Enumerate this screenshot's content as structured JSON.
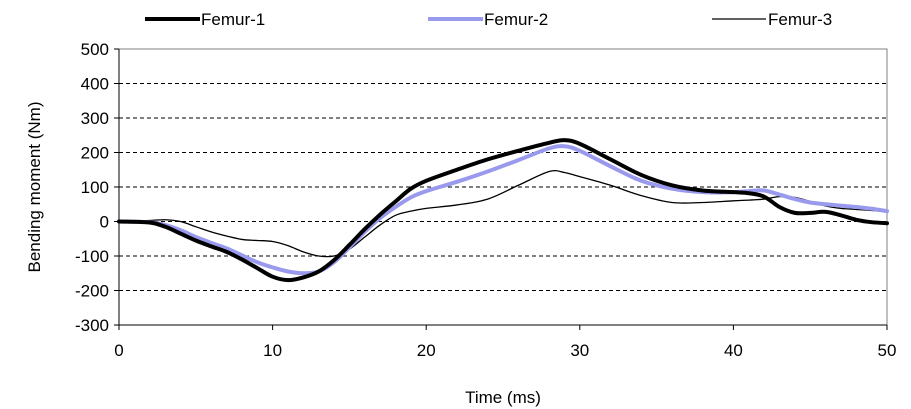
{
  "chart_data": {
    "type": "line",
    "xlabel": "Time (ms)",
    "ylabel": "Bending moment (Nm)",
    "xlim": [
      0,
      50
    ],
    "ylim": [
      -300,
      500
    ],
    "x_ticks": [
      0,
      10,
      20,
      30,
      40,
      50
    ],
    "y_ticks": [
      -300,
      -200,
      -100,
      0,
      100,
      200,
      300,
      400,
      500
    ],
    "grid": "horizontal dashed",
    "legend_position": "top",
    "series": [
      {
        "name": "Femur-1",
        "color": "#000000",
        "line_width": "thick",
        "x": [
          0,
          2,
          3,
          4,
          5,
          6,
          7,
          8,
          9,
          10,
          11,
          12,
          13,
          14,
          15,
          16,
          17,
          18,
          19,
          20,
          22,
          24,
          26,
          28,
          29,
          30,
          32,
          34,
          36,
          38,
          40,
          41,
          42,
          43,
          44,
          45,
          46,
          47,
          48,
          49,
          50
        ],
        "values": [
          0,
          -3,
          -15,
          -35,
          -55,
          -72,
          -88,
          -110,
          -135,
          -160,
          -170,
          -162,
          -145,
          -112,
          -68,
          -22,
          20,
          58,
          95,
          118,
          150,
          180,
          205,
          228,
          236,
          225,
          180,
          135,
          105,
          90,
          85,
          82,
          72,
          42,
          25,
          25,
          28,
          18,
          5,
          -2,
          -5
        ]
      },
      {
        "name": "Femur-2",
        "color": "#9999ee",
        "line_width": "thick",
        "x": [
          0,
          2,
          3,
          4,
          5,
          6,
          7,
          8,
          9,
          10,
          11,
          12,
          13,
          14,
          15,
          16,
          17,
          18,
          19,
          20,
          22,
          24,
          26,
          28,
          29,
          30,
          32,
          34,
          36,
          38,
          40,
          41,
          42,
          43,
          44,
          45,
          46,
          47,
          48,
          49,
          50
        ],
        "values": [
          0,
          -2,
          -10,
          -25,
          -45,
          -62,
          -78,
          -98,
          -118,
          -133,
          -145,
          -150,
          -145,
          -118,
          -75,
          -30,
          10,
          42,
          70,
          88,
          115,
          145,
          178,
          212,
          218,
          205,
          160,
          118,
          95,
          85,
          85,
          88,
          90,
          78,
          65,
          55,
          50,
          46,
          42,
          37,
          30
        ]
      },
      {
        "name": "Femur-3",
        "color": "#000000",
        "line_width": "thin",
        "x": [
          0,
          2,
          3,
          4,
          5,
          6,
          7,
          8,
          9,
          10,
          11,
          12,
          13,
          14,
          15,
          16,
          17,
          18,
          19,
          20,
          22,
          24,
          26,
          28,
          29,
          30,
          32,
          34,
          36,
          38,
          40,
          41,
          42,
          43,
          44,
          45,
          46,
          47,
          48,
          49,
          50
        ],
        "values": [
          0,
          3,
          5,
          0,
          -15,
          -30,
          -42,
          -52,
          -55,
          -58,
          -70,
          -88,
          -100,
          -100,
          -80,
          -45,
          -10,
          18,
          30,
          38,
          48,
          65,
          105,
          145,
          142,
          130,
          105,
          75,
          55,
          55,
          60,
          62,
          65,
          72,
          70,
          58,
          45,
          38,
          35,
          32,
          28
        ]
      }
    ]
  }
}
